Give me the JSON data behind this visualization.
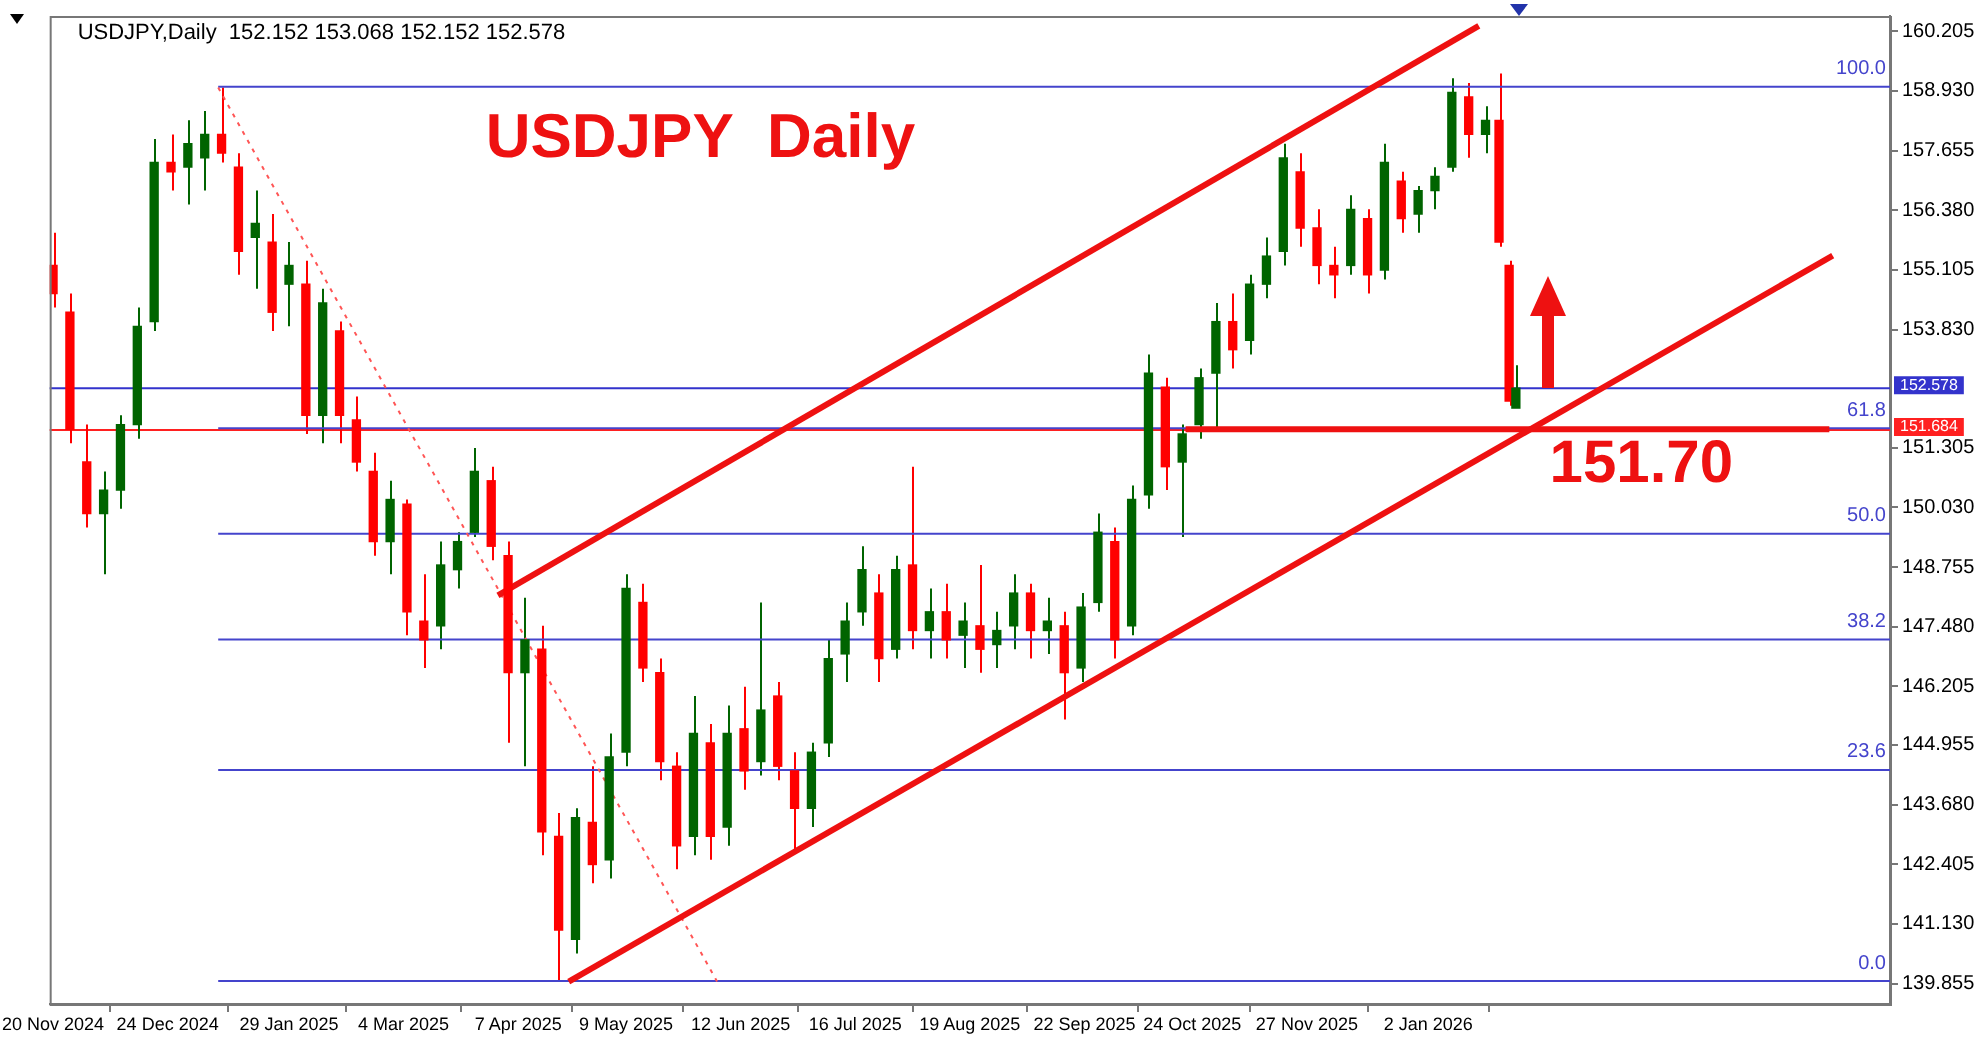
{
  "chart_data": {
    "type": "candlestick",
    "title": "USDJPY  Daily",
    "annotations": [
      "USDJPY,Daily  152.152 153.068 152.152 152.578",
      {
        "text": "151.70",
        "x": "2026-02-07",
        "y": 151.7
      }
    ],
    "x": [
      "2024-11-20",
      "2024-11-25",
      "2024-11-30",
      "2024-12-05",
      "2024-12-10",
      "2024-12-15",
      "2024-12-20",
      "2024-12-25",
      "2024-12-30",
      "2025-01-04",
      "2025-01-09",
      "2025-01-14",
      "2025-01-19",
      "2025-01-24",
      "2025-01-29",
      "2025-02-03",
      "2025-02-08",
      "2025-02-13",
      "2025-02-18",
      "2025-02-23",
      "2025-02-28",
      "2025-03-05",
      "2025-03-10",
      "2025-03-15",
      "2025-03-20",
      "2025-03-25",
      "2025-03-30",
      "2025-04-04",
      "2025-04-09",
      "2025-04-14",
      "2025-04-19",
      "2025-04-24",
      "2025-04-29",
      "2025-05-04",
      "2025-05-09",
      "2025-05-14",
      "2025-05-19",
      "2025-05-24",
      "2025-05-29",
      "2025-06-03",
      "2025-06-08",
      "2025-06-13",
      "2025-06-18",
      "2025-06-23",
      "2025-06-28",
      "2025-07-03",
      "2025-07-08",
      "2025-07-13",
      "2025-07-18",
      "2025-07-23",
      "2025-07-28",
      "2025-08-02",
      "2025-08-07",
      "2025-08-12",
      "2025-08-17",
      "2025-08-22",
      "2025-08-27",
      "2025-09-01",
      "2025-09-06",
      "2025-09-11",
      "2025-09-16",
      "2025-09-21",
      "2025-09-26",
      "2025-10-01",
      "2025-10-06",
      "2025-10-11",
      "2025-10-16",
      "2025-10-21",
      "2025-10-26",
      "2025-10-31",
      "2025-11-05",
      "2025-11-10",
      "2025-11-15",
      "2025-11-20",
      "2025-11-25",
      "2025-11-30",
      "2025-12-05",
      "2025-12-10",
      "2025-12-15",
      "2025-12-20",
      "2025-12-25",
      "2025-12-30",
      "2026-01-04",
      "2026-01-09",
      "2026-01-14",
      "2026-01-19",
      "2026-01-23",
      "2026-01-26",
      "2026-01-28"
    ],
    "ohlc": [
      [
        155.2,
        155.9,
        154.3,
        154.6
      ],
      [
        154.2,
        154.6,
        151.4,
        151.7
      ],
      [
        151.0,
        151.8,
        149.6,
        149.9
      ],
      [
        149.9,
        150.8,
        148.6,
        150.4
      ],
      [
        150.4,
        152.0,
        150.0,
        151.8
      ],
      [
        151.8,
        154.3,
        151.5,
        153.9
      ],
      [
        154.0,
        157.9,
        153.8,
        157.4
      ],
      [
        157.4,
        158.0,
        156.8,
        157.2
      ],
      [
        157.3,
        158.3,
        156.5,
        157.8
      ],
      [
        157.5,
        158.5,
        156.8,
        158.0
      ],
      [
        158.0,
        159.0,
        157.4,
        157.6
      ],
      [
        157.3,
        157.6,
        155.0,
        155.5
      ],
      [
        155.8,
        156.8,
        154.7,
        156.1
      ],
      [
        155.7,
        156.3,
        153.8,
        154.2
      ],
      [
        154.8,
        155.7,
        153.9,
        155.2
      ],
      [
        154.8,
        155.3,
        151.6,
        152.0
      ],
      [
        152.0,
        154.7,
        151.4,
        154.4
      ],
      [
        153.8,
        154.0,
        151.4,
        152.0
      ],
      [
        151.9,
        152.4,
        150.8,
        151.0
      ],
      [
        150.8,
        151.2,
        149.0,
        149.3
      ],
      [
        149.3,
        150.6,
        148.6,
        150.2
      ],
      [
        150.1,
        150.2,
        147.3,
        147.8
      ],
      [
        147.6,
        148.6,
        146.6,
        147.2
      ],
      [
        147.5,
        149.3,
        147.0,
        148.8
      ],
      [
        148.7,
        149.5,
        148.3,
        149.3
      ],
      [
        149.5,
        151.3,
        149.4,
        150.8
      ],
      [
        150.6,
        150.9,
        148.9,
        149.2
      ],
      [
        149.0,
        149.3,
        145.0,
        146.5
      ],
      [
        146.5,
        148.1,
        144.5,
        147.2
      ],
      [
        147.0,
        147.5,
        142.6,
        143.1
      ],
      [
        143.0,
        143.5,
        139.9,
        141.0
      ],
      [
        140.8,
        143.6,
        140.5,
        143.4
      ],
      [
        143.3,
        144.5,
        142.0,
        142.4
      ],
      [
        142.5,
        145.2,
        142.1,
        144.7
      ],
      [
        144.8,
        148.6,
        144.5,
        148.3
      ],
      [
        148.0,
        148.4,
        146.3,
        146.6
      ],
      [
        146.5,
        146.8,
        144.2,
        144.6
      ],
      [
        144.5,
        144.8,
        142.3,
        142.8
      ],
      [
        143.0,
        146.0,
        142.6,
        145.2
      ],
      [
        145.0,
        145.4,
        142.5,
        143.0
      ],
      [
        143.2,
        145.8,
        142.8,
        145.2
      ],
      [
        145.3,
        146.2,
        144.0,
        144.4
      ],
      [
        144.6,
        148.0,
        144.3,
        145.7
      ],
      [
        146.0,
        146.3,
        144.2,
        144.5
      ],
      [
        144.4,
        144.8,
        142.7,
        143.6
      ],
      [
        143.6,
        145.0,
        143.2,
        144.8
      ],
      [
        145.0,
        147.2,
        144.7,
        146.8
      ],
      [
        146.9,
        148.0,
        146.3,
        147.6
      ],
      [
        147.8,
        149.2,
        147.5,
        148.7
      ],
      [
        148.2,
        148.6,
        146.3,
        146.8
      ],
      [
        147.0,
        149.0,
        146.8,
        148.7
      ],
      [
        148.8,
        150.9,
        147.0,
        147.4
      ],
      [
        147.4,
        148.3,
        146.8,
        147.8
      ],
      [
        147.8,
        148.4,
        146.8,
        147.2
      ],
      [
        147.3,
        148.0,
        146.6,
        147.6
      ],
      [
        147.5,
        148.8,
        146.5,
        147.0
      ],
      [
        147.1,
        147.8,
        146.6,
        147.4
      ],
      [
        147.5,
        148.6,
        147.0,
        148.2
      ],
      [
        148.2,
        148.4,
        146.8,
        147.4
      ],
      [
        147.4,
        148.1,
        146.9,
        147.6
      ],
      [
        147.5,
        147.8,
        145.5,
        146.5
      ],
      [
        146.6,
        148.2,
        146.3,
        147.9
      ],
      [
        148.0,
        149.9,
        147.8,
        149.5
      ],
      [
        149.3,
        149.6,
        146.8,
        147.2
      ],
      [
        147.5,
        150.5,
        147.3,
        150.2
      ],
      [
        150.3,
        153.3,
        150.0,
        152.9
      ],
      [
        152.6,
        152.8,
        150.4,
        150.9
      ],
      [
        151.0,
        151.8,
        149.4,
        151.6
      ],
      [
        151.8,
        153.0,
        151.5,
        152.8
      ],
      [
        152.9,
        154.4,
        151.7,
        154.0
      ],
      [
        154.0,
        154.6,
        153.0,
        153.4
      ],
      [
        153.6,
        155.0,
        153.3,
        154.8
      ],
      [
        154.8,
        155.8,
        154.5,
        155.4
      ],
      [
        155.5,
        157.8,
        155.2,
        157.5
      ],
      [
        157.2,
        157.6,
        155.6,
        156.0
      ],
      [
        156.0,
        156.4,
        154.8,
        155.2
      ],
      [
        155.2,
        155.6,
        154.5,
        155.0
      ],
      [
        155.2,
        156.7,
        155.0,
        156.4
      ],
      [
        156.2,
        156.4,
        154.6,
        155.0
      ],
      [
        155.1,
        157.8,
        154.9,
        157.4
      ],
      [
        157.0,
        157.2,
        155.9,
        156.2
      ],
      [
        156.3,
        156.9,
        155.9,
        156.8
      ],
      [
        156.8,
        157.3,
        156.4,
        157.1
      ],
      [
        157.3,
        159.2,
        157.2,
        158.9
      ],
      [
        158.8,
        159.1,
        157.5,
        158.0
      ],
      [
        158.0,
        158.6,
        157.6,
        158.3
      ],
      [
        158.3,
        159.3,
        155.6,
        155.7
      ],
      [
        155.2,
        155.3,
        152.2,
        152.3
      ],
      [
        152.152,
        153.068,
        152.152,
        152.578
      ]
    ],
    "colors": [
      "#ff0000",
      "#ff0000",
      "#ff0000",
      "#006400",
      "#006400",
      "#006400",
      "#006400",
      "#ff0000",
      "#006400",
      "#006400",
      "#ff0000",
      "#ff0000",
      "#006400",
      "#ff0000",
      "#006400",
      "#ff0000",
      "#006400",
      "#ff0000",
      "#ff0000",
      "#ff0000",
      "#006400",
      "#ff0000",
      "#ff0000",
      "#006400",
      "#006400",
      "#006400",
      "#ff0000",
      "#ff0000",
      "#006400",
      "#ff0000",
      "#ff0000",
      "#006400",
      "#ff0000",
      "#006400",
      "#006400",
      "#ff0000",
      "#ff0000",
      "#ff0000",
      "#006400",
      "#ff0000",
      "#006400",
      "#ff0000",
      "#006400",
      "#ff0000",
      "#ff0000",
      "#006400",
      "#006400",
      "#006400",
      "#006400",
      "#ff0000",
      "#006400",
      "#ff0000",
      "#006400",
      "#ff0000",
      "#006400",
      "#ff0000",
      "#006400",
      "#006400",
      "#ff0000",
      "#006400",
      "#ff0000",
      "#006400",
      "#006400",
      "#ff0000",
      "#006400",
      "#006400",
      "#ff0000",
      "#006400",
      "#006400",
      "#006400",
      "#ff0000",
      "#006400",
      "#006400",
      "#006400",
      "#ff0000",
      "#ff0000",
      "#ff0000",
      "#006400",
      "#ff0000",
      "#006400",
      "#ff0000",
      "#006400",
      "#006400",
      "#006400",
      "#ff0000",
      "#006400",
      "#ff0000",
      "#ff0000",
      "#006400"
    ],
    "series": [
      {
        "type": "line",
        "color": "#ee1111",
        "x": [
          "2025-04-01",
          "2026-01-17"
        ],
        "values": [
          148.15,
          160.32
        ]
      },
      {
        "type": "line",
        "color": "#ee1111",
        "x": [
          "2025-04-22",
          "2026-05-02"
        ],
        "values": [
          139.9,
          155.41
        ]
      },
      {
        "type": "line",
        "color": "#ee1111",
        "x": [
          "2025-10-22",
          "2026-05-01"
        ],
        "values": [
          151.7,
          151.7
        ]
      },
      {
        "type": "line",
        "color": "#ff5555",
        "line_style": "dotted",
        "x": [
          "2025-01-08",
          "2025-06-05"
        ],
        "values": [
          159.0,
          139.9
        ]
      },
      {
        "type": "line",
        "name": "100.0",
        "color": "#4444cc",
        "x": [
          "2025-01-08",
          "2026-05-19"
        ],
        "values": [
          159.02,
          159.02
        ]
      },
      {
        "type": "line",
        "name": "61.8",
        "color": "#4444cc",
        "x": [
          "2025-01-08",
          "2026-05-19"
        ],
        "values": [
          151.72,
          151.72
        ]
      },
      {
        "type": "line",
        "name": "50.0",
        "color": "#4444cc",
        "x": [
          "2025-01-08",
          "2026-05-19"
        ],
        "values": [
          149.47,
          149.47
        ]
      },
      {
        "type": "line",
        "name": "38.2",
        "color": "#4444cc",
        "x": [
          "2025-01-08",
          "2026-05-19"
        ],
        "values": [
          147.21,
          147.21
        ]
      },
      {
        "type": "line",
        "name": "23.6",
        "color": "#4444cc",
        "x": [
          "2025-01-08",
          "2026-05-19"
        ],
        "values": [
          144.42,
          144.42
        ]
      },
      {
        "type": "line",
        "name": "0.0",
        "color": "#4444cc",
        "x": [
          "2025-01-08",
          "2026-05-19"
        ],
        "values": [
          139.91,
          139.91
        ]
      }
    ],
    "ref_lines": [
      {
        "axis": "y",
        "value": 152.578,
        "label": "152.578",
        "color": "#3333cc"
      },
      {
        "axis": "y",
        "value": 151.684,
        "label": "151.684",
        "color": "#ff2020"
      }
    ],
    "xlim": [
      "2024-11-19",
      "2026-05-19"
    ],
    "xticks": [
      {
        "value": "2024-11-20",
        "label": "20 Nov 2024"
      },
      {
        "value": "2024-12-24",
        "label": "24 Dec 2024"
      },
      {
        "value": "2025-01-29",
        "label": "29 Jan 2025"
      },
      {
        "value": "2025-03-04",
        "label": "4 Mar 2025"
      },
      {
        "value": "2025-04-07",
        "label": "7 Apr 2025"
      },
      {
        "value": "2025-05-09",
        "label": "9 May 2025"
      },
      {
        "value": "2025-06-12",
        "label": "12 Jun 2025"
      },
      {
        "value": "2025-07-16",
        "label": "16 Jul 2025"
      },
      {
        "value": "2025-08-19",
        "label": "19 Aug 2025"
      },
      {
        "value": "2025-09-22",
        "label": "22 Sep 2025"
      },
      {
        "value": "2025-10-24",
        "label": "24 Oct 2025"
      },
      {
        "value": "2025-11-27",
        "label": "27 Nov 2025"
      },
      {
        "value": "2026-01-02",
        "label": "2 Jan 2026"
      }
    ],
    "ylim": [
      139.42,
      160.53
    ],
    "yticks": [
      {
        "value": 139.855,
        "label": "139.855"
      },
      {
        "value": 141.13,
        "label": "141.130"
      },
      {
        "value": 142.405,
        "label": "142.405"
      },
      {
        "value": 143.68,
        "label": "143.680"
      },
      {
        "value": 144.955,
        "label": "144.955"
      },
      {
        "value": 146.205,
        "label": "146.205"
      },
      {
        "value": 147.48,
        "label": "147.480"
      },
      {
        "value": 148.755,
        "label": "148.755"
      },
      {
        "value": 150.03,
        "label": "150.030"
      },
      {
        "value": 151.305,
        "label": "151.305"
      },
      {
        "value": 153.83,
        "label": "153.830"
      },
      {
        "value": 155.105,
        "label": "155.105"
      },
      {
        "value": 156.38,
        "label": "156.380"
      },
      {
        "value": 157.655,
        "label": "157.655"
      },
      {
        "value": 158.93,
        "label": "158.930"
      },
      {
        "value": 160.205,
        "label": "160.205"
      }
    ],
    "grid": false,
    "legend": false
  }
}
